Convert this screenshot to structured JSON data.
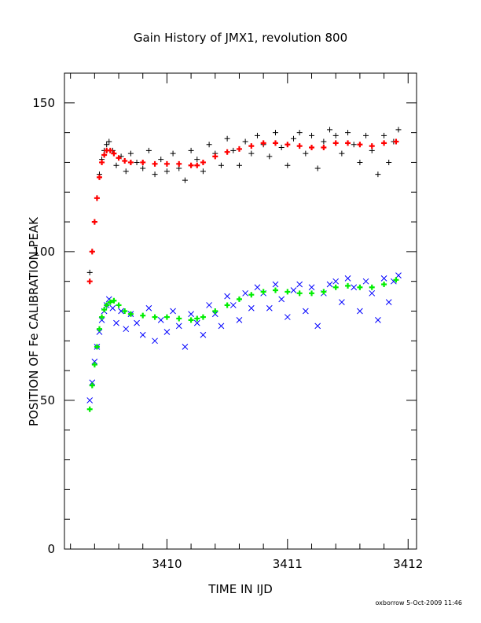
{
  "chart_data": {
    "type": "scatter",
    "title": "Gain History of JMX1, revolution 800",
    "xlabel": "TIME IN IJD",
    "ylabel": "POSITION OF Fe CALIBRATION PEAK",
    "xlim": [
      3409.15,
      3412.07
    ],
    "ylim": [
      0,
      160
    ],
    "xticks": [
      3410,
      3411,
      3412
    ],
    "xtick_labels": [
      "3410",
      "3411",
      "3412"
    ],
    "yticks": [
      0,
      50,
      100,
      150
    ],
    "ytick_labels": [
      "0",
      "50",
      "100",
      "150"
    ],
    "grid": false,
    "series": [
      {
        "marker": "+",
        "color": "#000000",
        "x": [
          3409.36,
          3409.38,
          3409.4,
          3409.42,
          3409.44,
          3409.46,
          3409.48,
          3409.5,
          3409.52,
          3409.55,
          3409.58,
          3409.62,
          3409.66,
          3409.7,
          3409.75,
          3409.8,
          3409.85,
          3409.9,
          3409.95,
          3410.0,
          3410.05,
          3410.1,
          3410.15,
          3410.2,
          3410.25,
          3410.3,
          3410.35,
          3410.4,
          3410.45,
          3410.5,
          3410.55,
          3410.6,
          3410.65,
          3410.7,
          3410.75,
          3410.8,
          3410.85,
          3410.9,
          3410.95,
          3411.0,
          3411.05,
          3411.1,
          3411.15,
          3411.2,
          3411.25,
          3411.3,
          3411.35,
          3411.4,
          3411.45,
          3411.5,
          3411.55,
          3411.6,
          3411.65,
          3411.7,
          3411.75,
          3411.8,
          3411.84,
          3411.88,
          3411.92
        ],
        "y": [
          93,
          100,
          110,
          118,
          126,
          131,
          134,
          136,
          137,
          134,
          129,
          132,
          127,
          133,
          130,
          128,
          134,
          126,
          131,
          127,
          133,
          128,
          124,
          134,
          131,
          127,
          136,
          133,
          129,
          138,
          134,
          129,
          137,
          133,
          139,
          136,
          132,
          140,
          135,
          129,
          138,
          140,
          133,
          139,
          128,
          137,
          141,
          139,
          133,
          140,
          136,
          130,
          139,
          134,
          126,
          139,
          130,
          137,
          141
        ]
      },
      {
        "marker": "x",
        "color": "#0000ff",
        "x": [
          3409.36,
          3409.38,
          3409.4,
          3409.42,
          3409.44,
          3409.46,
          3409.48,
          3409.5,
          3409.52,
          3409.55,
          3409.58,
          3409.62,
          3409.66,
          3409.7,
          3409.75,
          3409.8,
          3409.85,
          3409.9,
          3409.95,
          3410.0,
          3410.05,
          3410.1,
          3410.15,
          3410.2,
          3410.25,
          3410.3,
          3410.35,
          3410.4,
          3410.45,
          3410.5,
          3410.55,
          3410.6,
          3410.65,
          3410.7,
          3410.75,
          3410.8,
          3410.85,
          3410.9,
          3410.95,
          3411.0,
          3411.05,
          3411.1,
          3411.15,
          3411.2,
          3411.25,
          3411.3,
          3411.35,
          3411.4,
          3411.45,
          3411.5,
          3411.55,
          3411.6,
          3411.65,
          3411.7,
          3411.75,
          3411.8,
          3411.84,
          3411.88,
          3411.92
        ],
        "y": [
          50,
          56,
          63,
          68,
          73,
          77,
          80,
          82,
          84,
          81,
          76,
          80,
          74,
          79,
          76,
          72,
          81,
          70,
          77,
          73,
          80,
          75,
          68,
          79,
          76,
          72,
          82,
          79,
          75,
          85,
          82,
          77,
          86,
          81,
          88,
          86,
          81,
          89,
          84,
          78,
          87,
          89,
          80,
          88,
          75,
          86,
          89,
          90,
          83,
          91,
          88,
          80,
          90,
          86,
          77,
          91,
          83,
          90,
          92
        ]
      },
      {
        "marker": "+",
        "color": "#ff0000",
        "x": [
          3409.36,
          3409.38,
          3409.4,
          3409.42,
          3409.44,
          3409.46,
          3409.48,
          3409.5,
          3409.53,
          3409.56,
          3409.6,
          3409.65,
          3409.7,
          3409.8,
          3409.9,
          3410.0,
          3410.1,
          3410.2,
          3410.25,
          3410.3,
          3410.4,
          3410.5,
          3410.6,
          3410.7,
          3410.8,
          3410.9,
          3411.0,
          3411.1,
          3411.2,
          3411.3,
          3411.4,
          3411.5,
          3411.6,
          3411.7,
          3411.8,
          3411.9
        ],
        "y": [
          90,
          100,
          110,
          118,
          125,
          130,
          132.5,
          134,
          134,
          133,
          131.5,
          130.5,
          130,
          130,
          129.5,
          129.5,
          129.5,
          129,
          129,
          130,
          132,
          133.5,
          134.5,
          135.5,
          136.5,
          136.5,
          136,
          135.5,
          135,
          135,
          136.5,
          136.5,
          136,
          135.5,
          136.5,
          137
        ]
      },
      {
        "marker": "+",
        "color": "#00ee00",
        "x": [
          3409.36,
          3409.38,
          3409.4,
          3409.42,
          3409.44,
          3409.46,
          3409.48,
          3409.5,
          3409.53,
          3409.56,
          3409.6,
          3409.65,
          3409.7,
          3409.8,
          3409.9,
          3410.0,
          3410.1,
          3410.2,
          3410.25,
          3410.3,
          3410.4,
          3410.5,
          3410.6,
          3410.7,
          3410.8,
          3410.9,
          3411.0,
          3411.1,
          3411.2,
          3411.3,
          3411.4,
          3411.5,
          3411.6,
          3411.7,
          3411.8,
          3411.9
        ],
        "y": [
          47,
          55,
          62,
          68,
          74,
          78,
          80.5,
          82,
          83,
          83.5,
          82,
          80,
          79,
          78.5,
          78,
          78,
          77.5,
          77,
          77.5,
          78,
          80,
          82,
          84,
          85.5,
          86.5,
          87,
          86.5,
          86,
          86,
          86.5,
          88,
          88.5,
          88,
          88,
          89,
          90.5
        ]
      }
    ]
  },
  "footer": {
    "credit": "oxborrow  5-Oct-2009 11:46"
  }
}
